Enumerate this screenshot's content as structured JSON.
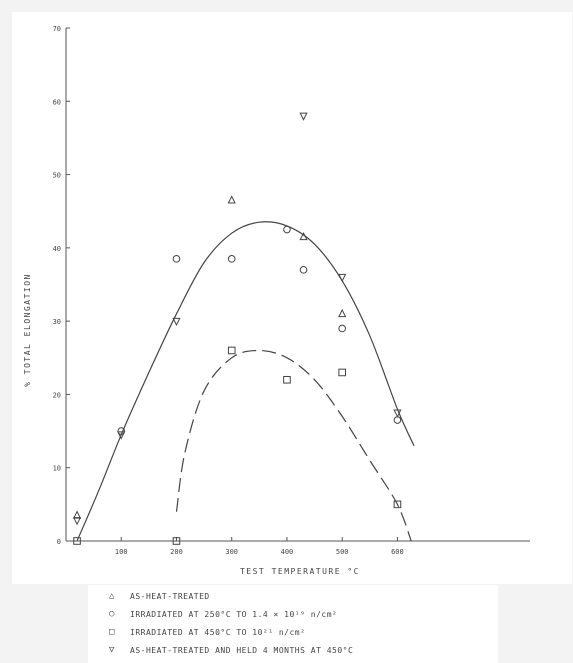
{
  "chart_data": {
    "type": "scatter",
    "title": "",
    "xlabel": "TEST TEMPERATURE °C",
    "ylabel": "% TOTAL ELONGATION",
    "xlim": [
      0,
      840
    ],
    "ylim": [
      0,
      70
    ],
    "xticks": [
      "100",
      "200",
      "300",
      "400",
      "500",
      "600"
    ],
    "xtick_values": [
      100,
      200,
      300,
      400,
      500,
      600
    ],
    "yticks": [
      "0",
      "10",
      "20",
      "30",
      "40",
      "50",
      "60",
      "70"
    ],
    "ytick_values": [
      0,
      10,
      20,
      30,
      40,
      50,
      60,
      70
    ],
    "grid": false,
    "legend_position": "bottom",
    "series": [
      {
        "name": "AS-HEAT-TREATED",
        "marker": "triangle-up",
        "points": [
          [
            20,
            3.5
          ],
          [
            300,
            46.5
          ],
          [
            430,
            41.5
          ],
          [
            500,
            31
          ]
        ]
      },
      {
        "name": "IRRADIATED AT 250°C TO 1.4 × 10¹⁹ n/cm²",
        "marker": "circle",
        "points": [
          [
            100,
            15
          ],
          [
            200,
            38.5
          ],
          [
            300,
            38.5
          ],
          [
            400,
            42.5
          ],
          [
            430,
            37
          ],
          [
            500,
            29
          ],
          [
            600,
            16.5
          ]
        ]
      },
      {
        "name": "IRRADIATED AT 450°C TO 10²¹ n/cm²",
        "marker": "square",
        "points": [
          [
            20,
            0
          ],
          [
            200,
            0
          ],
          [
            300,
            26
          ],
          [
            400,
            22
          ],
          [
            500,
            23
          ],
          [
            600,
            5
          ]
        ]
      },
      {
        "name": "AS-HEAT-TREATED AND HELD 4 MONTHS AT 450°C",
        "marker": "triangle-down",
        "points": [
          [
            20,
            2.8
          ],
          [
            100,
            14.5
          ],
          [
            200,
            30
          ],
          [
            430,
            58
          ],
          [
            500,
            36
          ],
          [
            600,
            17.5
          ]
        ]
      }
    ],
    "curves": [
      {
        "style": "solid",
        "points": [
          [
            20,
            0
          ],
          [
            60,
            7
          ],
          [
            100,
            14.5
          ],
          [
            150,
            23
          ],
          [
            200,
            31
          ],
          [
            250,
            38
          ],
          [
            300,
            42
          ],
          [
            350,
            43.5
          ],
          [
            400,
            43
          ],
          [
            450,
            40.5
          ],
          [
            500,
            35.5
          ],
          [
            550,
            28
          ],
          [
            600,
            18
          ],
          [
            630,
            13
          ]
        ]
      },
      {
        "style": "dashed",
        "points": [
          [
            200,
            4
          ],
          [
            215,
            12
          ],
          [
            250,
            20.5
          ],
          [
            300,
            25
          ],
          [
            350,
            26
          ],
          [
            400,
            25
          ],
          [
            450,
            22
          ],
          [
            500,
            17
          ],
          [
            550,
            11
          ],
          [
            600,
            5
          ],
          [
            625,
            0
          ]
        ]
      }
    ]
  }
}
